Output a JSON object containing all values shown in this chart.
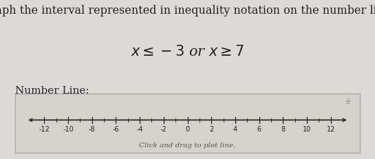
{
  "title": "Graph the interval represented in inequality notation on the number line.",
  "number_line_label": "Number Line:",
  "click_label": "Click and drag to plot line.",
  "x_min": -13.5,
  "x_max": 13.5,
  "tick_positions": [
    -12,
    -10,
    -8,
    -6,
    -4,
    -2,
    0,
    2,
    4,
    6,
    8,
    10,
    12
  ],
  "tick_labels": [
    "-12",
    "-10",
    "-8",
    "-6",
    "-4",
    "-2",
    "0",
    "2",
    "4",
    "6",
    "8",
    "10",
    "12"
  ],
  "minor_tick_positions": [
    -11,
    -9,
    -7,
    -5,
    -3,
    -1,
    1,
    3,
    5,
    7,
    9,
    11
  ],
  "bg_color": "#dcdad6",
  "box_bg": "#d5d2cc",
  "border_color": "#aaaaaa",
  "axis_color": "#222222",
  "text_color": "#222222",
  "title_fontsize": 11.5,
  "inequality_fontsize": 15,
  "tick_fontsize": 7,
  "nl_label_fontsize": 11,
  "click_fontsize": 7.5
}
